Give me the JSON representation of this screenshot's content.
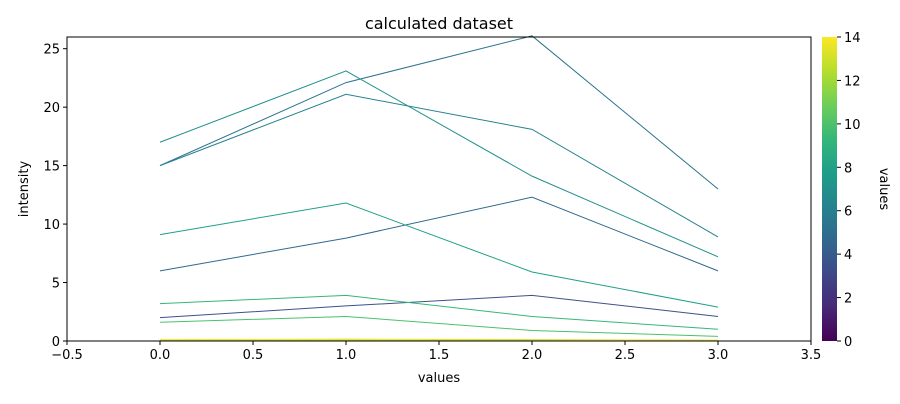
{
  "chart_data": {
    "type": "line",
    "title": "calculated dataset",
    "xlabel": "values",
    "ylabel": "intensity",
    "xlim": [
      -0.5,
      3.5
    ],
    "ylim": [
      0,
      26
    ],
    "xticks": [
      -0.5,
      0.0,
      0.5,
      1.0,
      1.5,
      2.0,
      2.5,
      3.0,
      3.5
    ],
    "xtick_labels": [
      "−0.5",
      "0.0",
      "0.5",
      "1.0",
      "1.5",
      "2.0",
      "2.5",
      "3.0",
      "3.5"
    ],
    "yticks": [
      0,
      5,
      10,
      15,
      20,
      25
    ],
    "ytick_labels": [
      "0",
      "5",
      "10",
      "15",
      "20",
      "25"
    ],
    "grid": false,
    "x": [
      0,
      1,
      2,
      3
    ],
    "colormap": "viridis",
    "series": [
      {
        "value": 0,
        "values": [
          0.0,
          0.0,
          0.0,
          0.0
        ],
        "color": "#440154"
      },
      {
        "value": 1,
        "values": [
          0.02,
          0.02,
          0.03,
          0.01
        ],
        "color": "#482878"
      },
      {
        "value": 2,
        "values": [
          0.05,
          0.06,
          0.08,
          0.03
        ],
        "color": "#3e4989"
      },
      {
        "value": 3,
        "values": [
          2.0,
          3.0,
          3.9,
          2.1
        ],
        "color": "#3b528b"
      },
      {
        "value": 4,
        "values": [
          6.0,
          8.8,
          12.3,
          6.0
        ],
        "color": "#31688e"
      },
      {
        "value": 5,
        "values": [
          15.0,
          22.1,
          26.1,
          13.0
        ],
        "color": "#2c728e"
      },
      {
        "value": 6,
        "values": [
          15.0,
          21.1,
          18.1,
          8.9
        ],
        "color": "#26828e"
      },
      {
        "value": 7,
        "values": [
          17.0,
          23.1,
          14.1,
          7.2
        ],
        "color": "#21918c"
      },
      {
        "value": 8,
        "values": [
          9.1,
          11.8,
          5.9,
          2.9
        ],
        "color": "#1fa088"
      },
      {
        "value": 9,
        "values": [
          3.2,
          3.9,
          2.1,
          1.0
        ],
        "color": "#35b779"
      },
      {
        "value": 10,
        "values": [
          1.6,
          2.1,
          0.9,
          0.4
        ],
        "color": "#4ac16d"
      },
      {
        "value": 11,
        "values": [
          0.1,
          0.15,
          0.12,
          0.05
        ],
        "color": "#6ece58"
      },
      {
        "value": 12,
        "values": [
          0.08,
          0.1,
          0.09,
          0.04
        ],
        "color": "#90d743"
      },
      {
        "value": 13,
        "values": [
          0.05,
          0.08,
          0.07,
          0.03
        ],
        "color": "#bddf26"
      },
      {
        "value": 14,
        "values": [
          0.12,
          0.14,
          0.1,
          0.06
        ],
        "color": "#fde725"
      }
    ],
    "colorbar": {
      "label": "values",
      "range": [
        0,
        14
      ],
      "ticks": [
        0,
        2,
        4,
        6,
        8,
        10,
        12,
        14
      ],
      "tick_labels": [
        "0",
        "2",
        "4",
        "6",
        "8",
        "10",
        "12",
        "14"
      ],
      "stops": [
        "#440154",
        "#482878",
        "#3e4989",
        "#31688e",
        "#26828e",
        "#1f9e89",
        "#35b779",
        "#6ece58",
        "#b5de2b",
        "#fde725"
      ]
    }
  }
}
